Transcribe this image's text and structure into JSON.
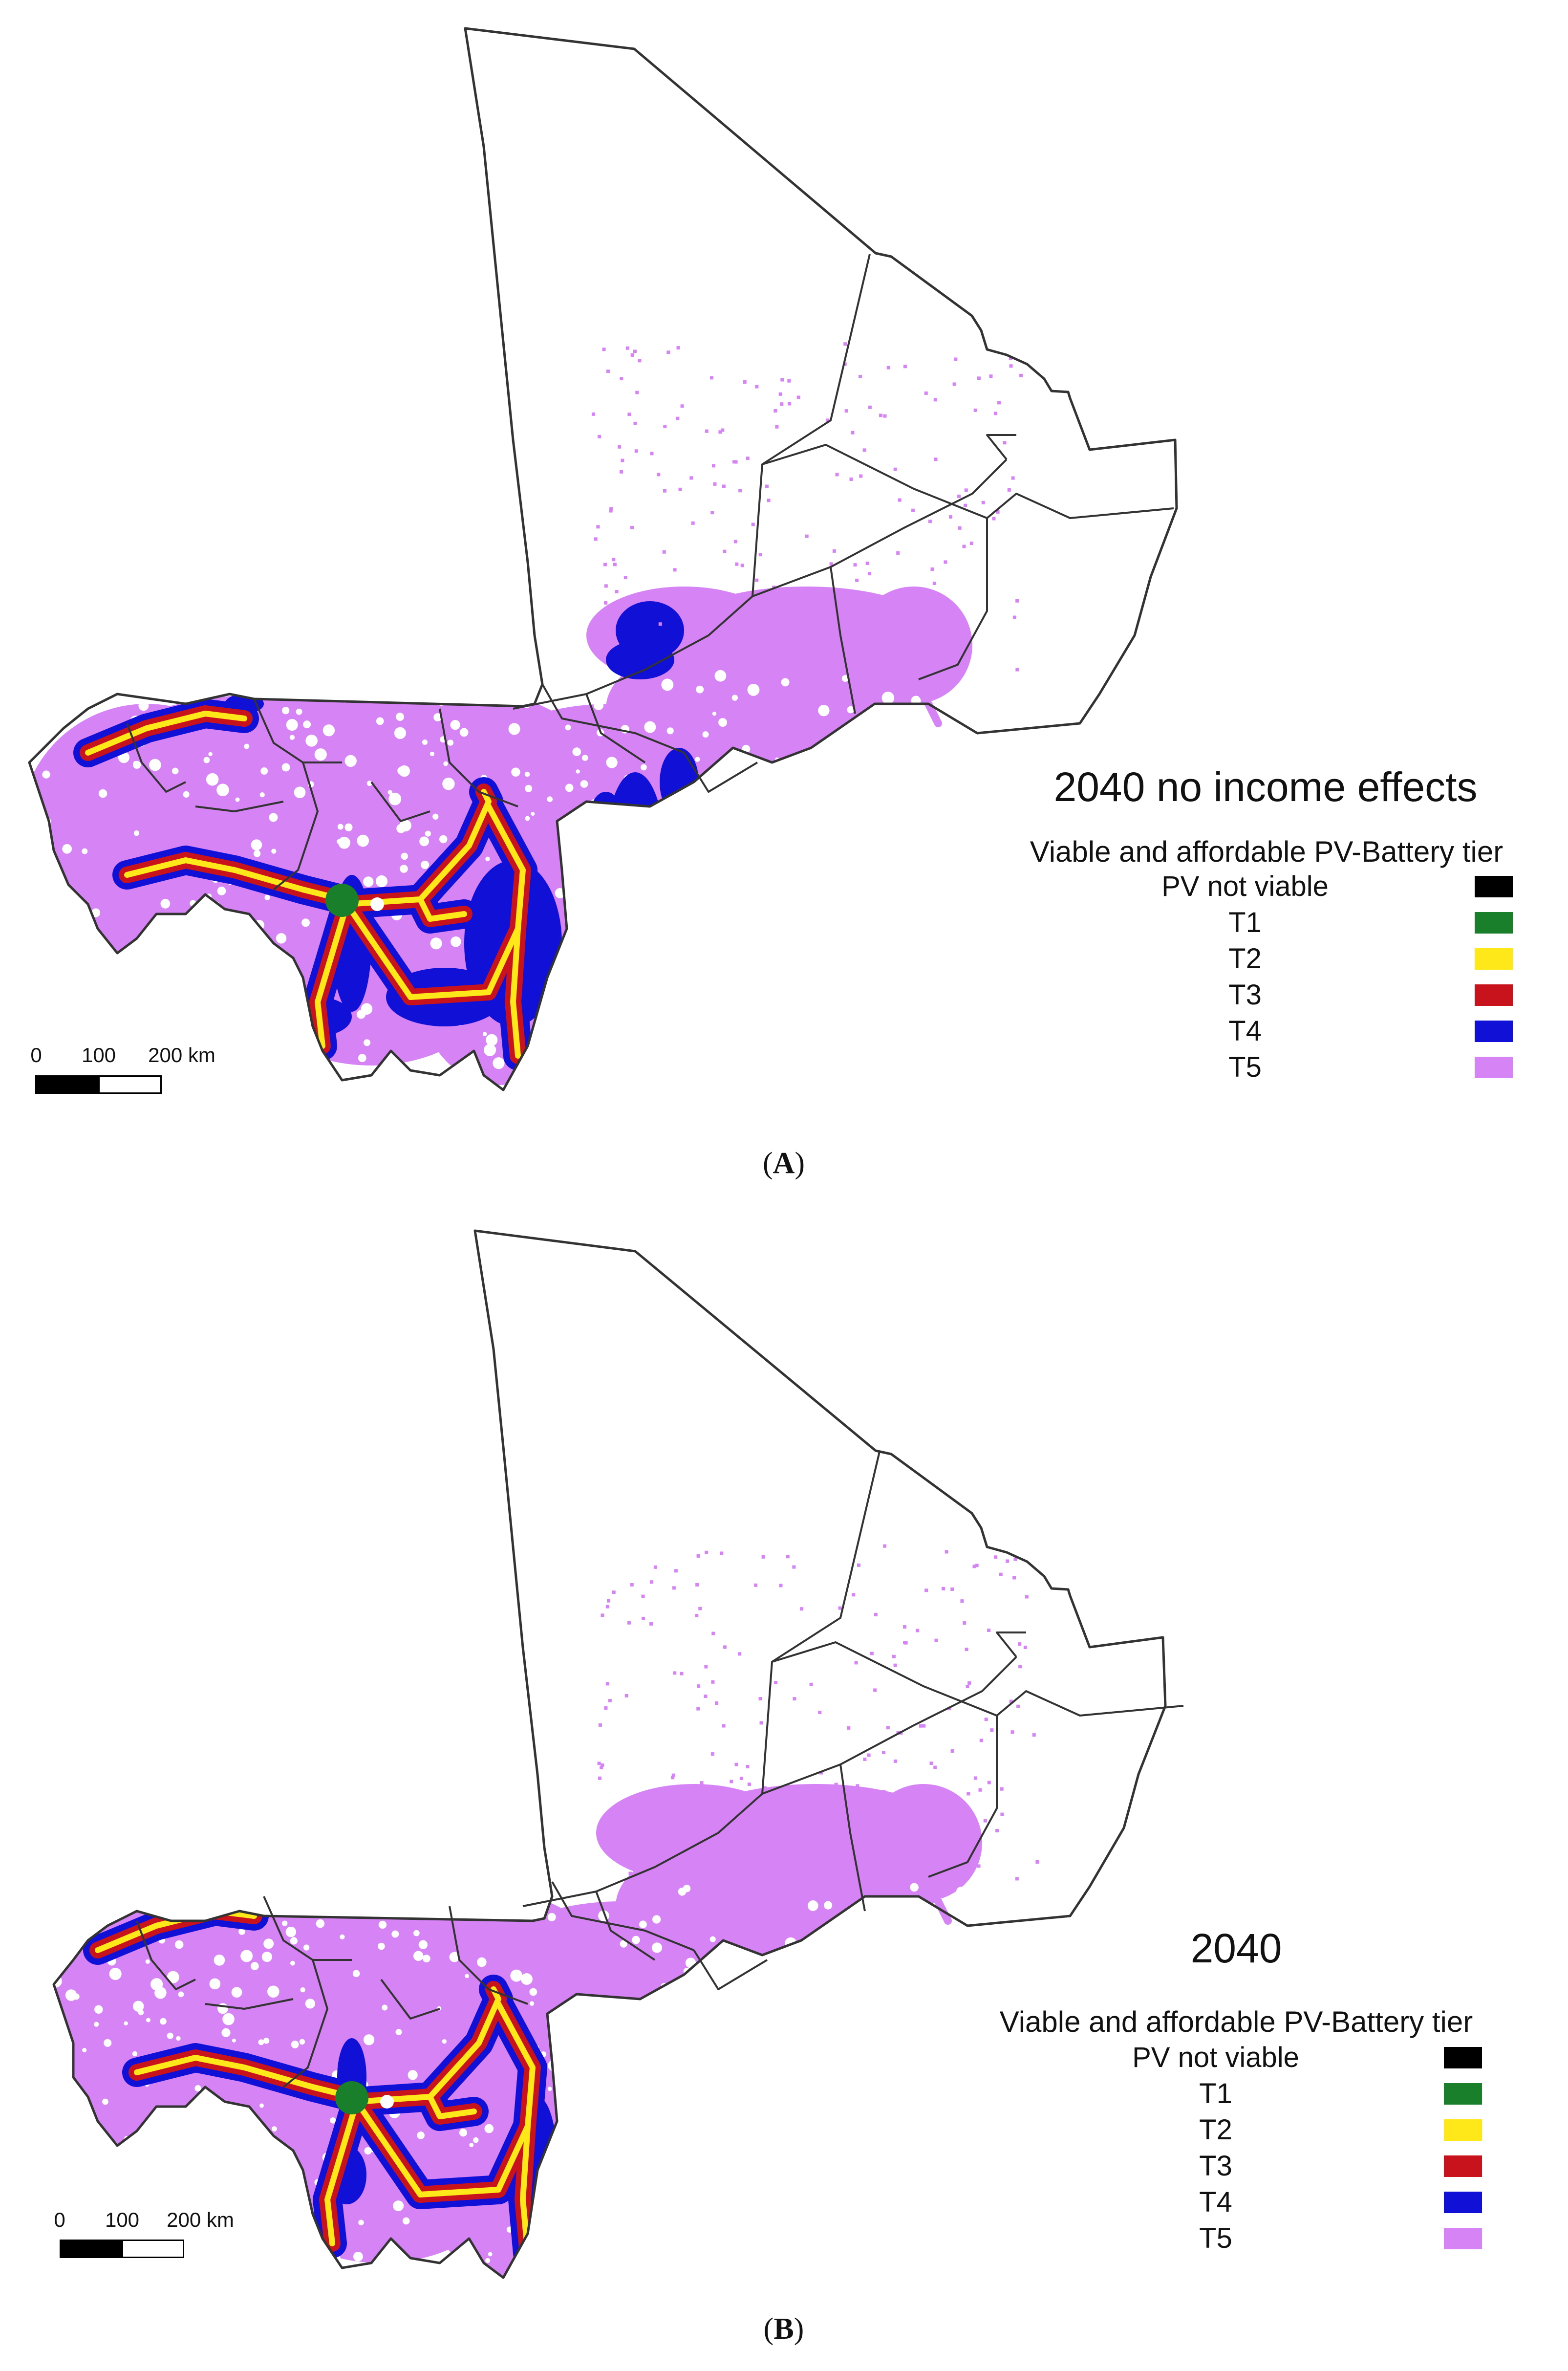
{
  "colors": {
    "pv_not_viable": "#000000",
    "T1": "#1a7f2a",
    "T2": "#ffe81a",
    "T3": "#c8131d",
    "T4": "#1010d6",
    "T5": "#d683f5",
    "border": "#333333"
  },
  "panels": [
    {
      "id": "A",
      "title": "2040 no income effects",
      "subtitle": "Viable and affordable PV-Battery tier",
      "legend": [
        {
          "label": "PV not viable",
          "color_key": "pv_not_viable"
        },
        {
          "label": "T1",
          "color_key": "T1"
        },
        {
          "label": "T2",
          "color_key": "T2"
        },
        {
          "label": "T3",
          "color_key": "T3"
        },
        {
          "label": "T4",
          "color_key": "T4"
        },
        {
          "label": "T5",
          "color_key": "T5"
        }
      ],
      "scale": {
        "labels": [
          "0",
          "100",
          "200 km"
        ]
      },
      "caption": {
        "open": "(",
        "letter": "A",
        "close": ")"
      }
    },
    {
      "id": "B",
      "title": "2040",
      "subtitle": "Viable and affordable PV-Battery tier",
      "legend": [
        {
          "label": "PV not viable",
          "color_key": "pv_not_viable"
        },
        {
          "label": "T1",
          "color_key": "T1"
        },
        {
          "label": "T2",
          "color_key": "T2"
        },
        {
          "label": "T3",
          "color_key": "T3"
        },
        {
          "label": "T4",
          "color_key": "T4"
        },
        {
          "label": "T5",
          "color_key": "T5"
        }
      ],
      "scale": {
        "labels": [
          "0",
          "100",
          "200 km"
        ]
      },
      "caption": {
        "open": "(",
        "letter": "B",
        "close": ")"
      }
    }
  ]
}
